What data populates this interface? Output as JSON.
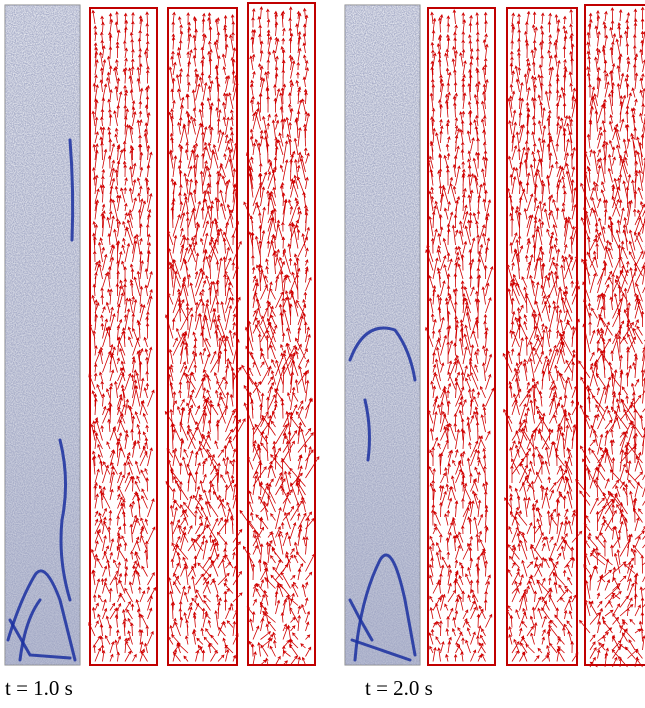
{
  "panels": [
    {
      "caption": "t = 1.0 s"
    },
    {
      "caption": "t = 2.0 s"
    }
  ]
}
